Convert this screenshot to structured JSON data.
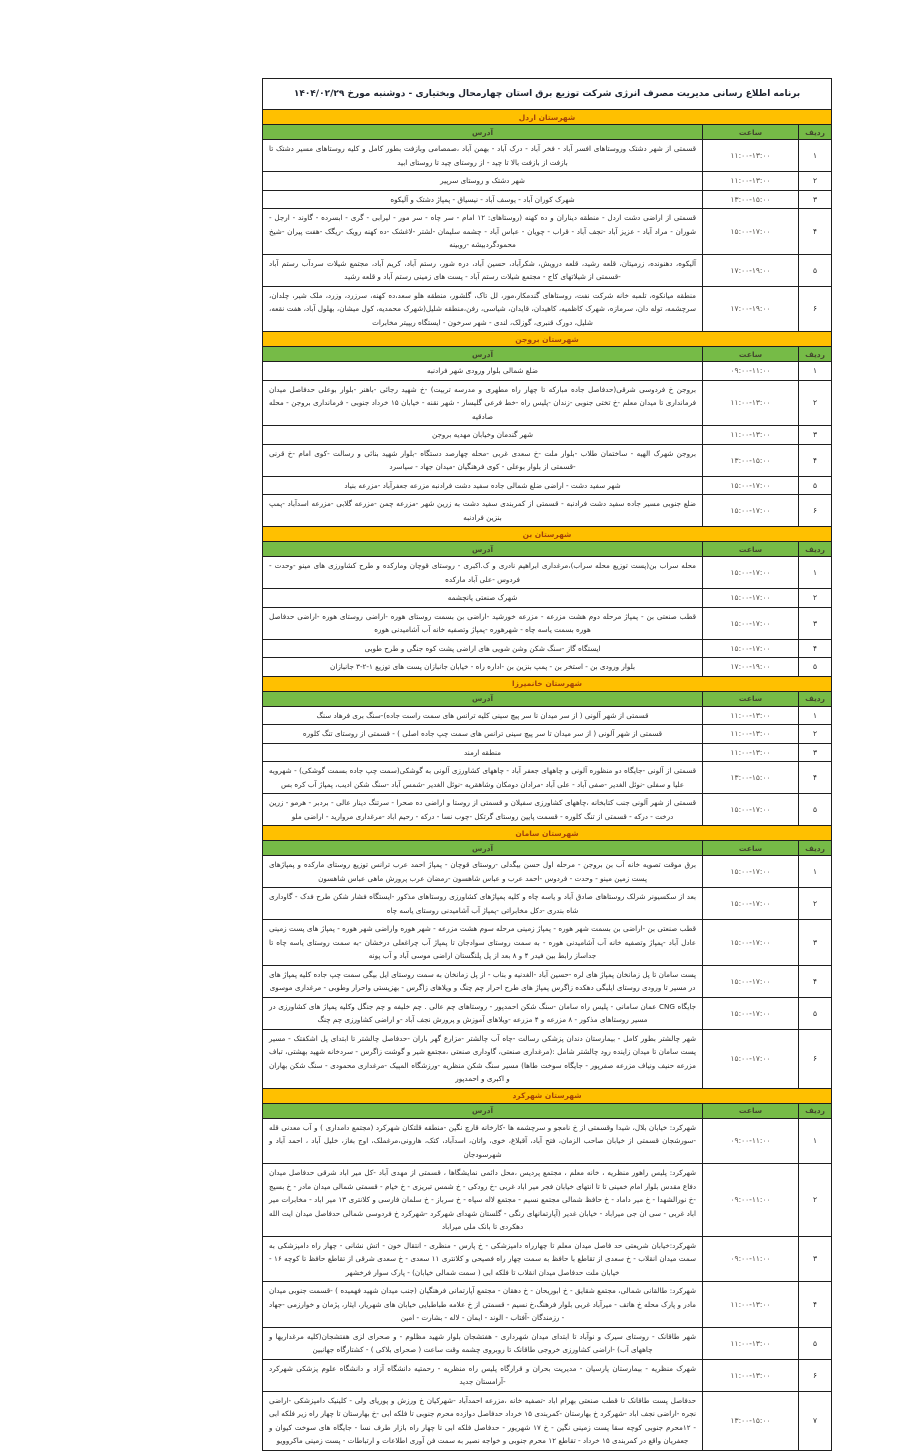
{
  "title": "برنامه اطلاع رسانی مدیریت مصرف انرژی شرکت توزیع برق استان چهارمحال وبختیاری - دوشنبه مورخ ۱۴۰۴/۰۲/۲۹",
  "columns": {
    "address": "آدرس",
    "time": "ساعت",
    "row": "ردیف"
  },
  "colors": {
    "section_header_bg": "#FFC000",
    "section_header_text": "#A3420B",
    "column_header_bg": "#76BB47",
    "column_header_text": "#44482E",
    "border": "#1F1F1F",
    "title_text": "#1F2430",
    "body_text": "#2B2B2B",
    "time_text": "#55504A",
    "page_bg": "#FFFFFF"
  },
  "sections": [
    {
      "name": "شهرستان اردل",
      "rows": [
        {
          "num": "۱",
          "time": "۱۱:۰۰-۱۳:۰۰",
          "address": "قسمتی از شهر دشتک وروستاهای افسر آباد - فخر آباد - درک آباد - بهمن آباد ،صمصامی وبازفت بطور کامل و کلیه روستاهای مسیر دشتک تا بازفت از بازفت بالا تا چید - از روستای چید تا روستای ابید"
        },
        {
          "num": "۲",
          "time": "۱۱:۰۰-۱۳:۰۰",
          "address": "شهر دشتک و روستای سرپیر"
        },
        {
          "num": "۳",
          "time": "۱۳:۰۰-۱۵:۰۰",
          "address": "شهرک کوران آباد - یوسف آباد - نیسیاق - پمپاژ دشتک و آلیکوه"
        },
        {
          "num": "۴",
          "time": "۱۵:۰۰-۱۷:۰۰",
          "address": "قسمتی از اراضی دشت اردل - منطقه دیناران و ده کهنه (روستاهای: ۱۲ امام - سر چاه - سر مور - لیرابی - گری - ابسرده - گاوند - ارجل - شوران - مراد آباد - عزیز آباد -نجف آباد - قراب - چویان - عباس آباد - چشمه سلیمان -لشتر -لاغشک -ده کهنه رویک -ریگک -هفت پیران -شیخ محمودگردبیشه -روبینه"
        },
        {
          "num": "۵",
          "time": "۱۷:۰۰-۱۹:۰۰",
          "address": "آلیکوه، دهنونده، زرمیتان، قلعه رشید، قلعه درویش، شکرآباد، حسین آباد، دره شور، رستم آباد، کریم آباد، مجتمع شیلات سردآب رستم آباد -قسمتی از شیلاتهای کاج - مجتمع شیلات رستم آباد - پست های زمینی رستم آباد و قلعه رشید"
        },
        {
          "num": "۶",
          "time": "۱۷:۰۰-۱۹:۰۰",
          "address": "منطقه میانکوه، تلمبه خانه شرکت نفت، روستاهای گندمکار،مور، لل تاک، گلشور، منطقه هلو سعد،ده کهنه، سرزرد، وزرد، ملک شیر، چلدان، سرچشمه، توله دان، سرمازه، شهرک کاظمیه، کاهیدان، قایدان، شیاسی، رفن،منطقه شلیل(شهرک محمدیه، کول میشان، بهلول آباد، هفت نقعه، شلیل، دورک قنبری، گوزلک، لندی - شهر سرخون - ایستگاه ریپیتر مخابرات"
        }
      ]
    },
    {
      "name": "شهرستان بروجن",
      "rows": [
        {
          "num": "۱",
          "time": "۰۹:۰۰-۱۱:۰۰",
          "address": "ضلع شمالی بلوار ورودی شهر فرادنبه"
        },
        {
          "num": "۲",
          "time": "۱۱:۰۰-۱۳:۰۰",
          "address": "بروجن خ فردوسی شرقی(حدفاصل جاده مبارکه تا چهار راه مطهری و مدرسه تربیت) -خ شهید رجائی -باهنر -بلوار بوعلی حدفاصل میدان فرمانداری تا میدان معلم -خ تختی جنوبی -زندان -پلیس راه -خط فرعی گلیسار - شهر نقنه - خیابان ۱۵ خرداد جنوبی - فرمانداری بروجن - محله صادقیه"
        },
        {
          "num": "۳",
          "time": "۱۱:۰۰-۱۳:۰۰",
          "address": "شهر گندمان وخیابان مهدیه بروجن"
        },
        {
          "num": "۴",
          "time": "۱۳:۰۰-۱۵:۰۰",
          "address": "بروجن شهرک الهیه - ساختمان طلاب -بلوار ملت -خ سعدی غربی -محله چهارصد دستگاه -بلوار شهید بنائی و رسالت -کوی امام -خ قرنی -قسمتی از بلوار بوعلی - کوی فرهنگیان -میدان جهاد - سیاسرد"
        },
        {
          "num": "۵",
          "time": "۱۵:۰۰-۱۷:۰۰",
          "address": "شهر سفید دشت - اراضی ضلع شمالی جاده سفید دشت فرادنبه مزرعه جعفرآباد -مزرعه بنیاد"
        },
        {
          "num": "۶",
          "time": "۱۵:۰۰-۱۷:۰۰",
          "address": "ضلع جنوبی مسیر جاده سفید دشت فرادنبه - قسمتی از کمربندی سفید دشت به زرین شهر -مزرعه چمن -مزرعه گلابی -مزرعه اسدآباد -پمپ بنزین فرادنبه"
        }
      ]
    },
    {
      "name": "شهرستان بن",
      "rows": [
        {
          "num": "۱",
          "time": "۱۵:۰۰-۱۷:۰۰",
          "address": "محله سراب بن(پست توزیع محله سراب)،مرغداری ابراهیم نادری و ک.اکبری - روستای قوچان ومارکده و طرح کشاورزی های مینو -وحدت - فردوس -علی آباد مارکده"
        },
        {
          "num": "۲",
          "time": "۱۵:۰۰-۱۷:۰۰",
          "address": "شهرک صنعتی یانچشمه"
        },
        {
          "num": "۳",
          "time": "۱۵:۰۰-۱۷:۰۰",
          "address": "قطب صنعتی بن - پمپاژ مرحله دوم هشت مزرعه - مزرعه خورشید -اراضی بن بسمت روستای هوره -اراضی روستای هوره -اراضی حدفاصل هوره بسمت یاسه چاه - شهرهوره -پمپاژ وتصفیه خانه آب آشامیدنی هوره"
        },
        {
          "num": "۴",
          "time": "۱۵:۰۰-۱۷:۰۰",
          "address": "ایستگاه گاز -سنگ شکن وشن شویی های اراضی پشت کوه جنگی و طرح طوبی"
        },
        {
          "num": "۵",
          "time": "۱۷:۰۰-۱۹:۰۰",
          "address": "بلوار ورودی بن - استخر بن - پمپ بنزین بن -اداره راه - خیابان جانبازان پست های توزیع ۱-۲-۳ جانبازان"
        }
      ]
    },
    {
      "name": "شهرستان خانمیرزا",
      "rows": [
        {
          "num": "۱",
          "time": "۱۱:۰۰-۱۳:۰۰",
          "address": "قسمتی از شهر آلونی ( از سر میدان تا سر پیچ سینی کلیه ترانس های سمت راست جاده)-سنگ بری فرهاد سنگ"
        },
        {
          "num": "۲",
          "time": "۱۱:۰۰-۱۳:۰۰",
          "address": "قسمتی از شهر آلونی ( از سر میدان تا سر پیچ سینی ترانس های سمت چپ جاده اصلی ) - قسمتی از روستای تنگ کلوره"
        },
        {
          "num": "۳",
          "time": "۱۱:۰۰-۱۳:۰۰",
          "address": "منطقه ارمند"
        },
        {
          "num": "۴",
          "time": "۱۳:۰۰-۱۵:۰۰",
          "address": "قسمتی از آلونی -جایگاه دو منظوره آلونی و چاههای جعفر آباد - چاههای کشاورزی آلونی به گوشکی(سمت چپ جاده بسمت گوشکی) - شهرویه علیا و سفلی -نوئل الغدیر -صفی آباد - علی آباد -مرادان دومکان وشاهقریه -نوئل الغدیر -شمس آباد -سنگ شکن ادیب، پمپاژ آب کره بس"
        },
        {
          "num": "۵",
          "time": "۱۵:۰۰-۱۷:۰۰",
          "address": "قسمتی از شهر آلونی جنب کتابخانه ،چاههای کشاورزی سفیلان و قسمتی از روستا و اراضی ده صحرا - سرتنگ دینار عالی - بردبر - هرمو - زرین درخت - درکه - قسمتی از تنگ کلوره - قسمت پایین روستای گرتکل -چوب نسا - درکه - رحیم اباد -مرغداری مروارید - اراضی ملو"
        }
      ]
    },
    {
      "name": "شهرستان سامان",
      "rows": [
        {
          "num": "۱",
          "time": "۱۵:۰۰-۱۷:۰۰",
          "address": "برق موقت تصویه خانه آب بن بروجن - مرحله اول حسن بیگدلی -روستای قوچان - پمپاژ احمد عرب ترانس توزیع روستای مارکده و پمپاژهای پست زمین مینو - وحدت - فردوس -احمد عرب و عباس شاهسون -رمضان عرب پرورش ماهی عباس شاهسون"
        },
        {
          "num": "۲",
          "time": "۱۵:۰۰-۱۷:۰۰",
          "address": "بعد از سکسیونر شرلک روستاهای صادق آباد و یاسه چاه و کلیه پمپاژهای کشاورزی روستاهای مذکور -ایستگاه فشار شکن طرح فدک - گاوداری شاه بندری -دکل مخابراتی -پمپاژ آب آشامیدنی روستای یاسه چاه"
        },
        {
          "num": "۳",
          "time": "۱۵:۰۰-۱۷:۰۰",
          "address": "قطب صنعتی بن -اراضی بن بسمت شهر هوره - پمپاژ زمینی مرحله سوم هشت مزرعه - شهر هوره واراضی شهر هوره - پمپاژ های پست زمینی عادل آباد -پمپاژ وتصفیه خانه آب آشامیدنی هوره - به سمت روستای سوادجان تا پمپاژ آب چراغعلی درخشان -به سمت روستای یاسه چاه تا جداساز رابط بین فیدر ۴ و ۸ بعد از پل پلنگستان اراضی موسی آباد و آب پونه"
        },
        {
          "num": "۴",
          "time": "۱۵:۰۰-۱۷:۰۰",
          "address": "پست سامان تا پل زمانخان پمپاژ های لره -حسین آباد -الغدنیه و بناب - از پل زمانخان به سمت روستای ایل بیگی سمت چپ جاده کلیه پمپاژ های در مسیر تا ورودی روستای ایلبگی دهکده زاگرس پمپاژ های طرح احرار چم چنگ و ویلاهای زاگرس - بهزیستی واحرار وطوبی - مرغداری موسوی"
        },
        {
          "num": "۵",
          "time": "۱۵:۰۰-۱۷:۰۰",
          "address": "جایگاه CNG عمان سامانی - پلیس راه سامان -سنگ شکن احمدپور - روستاهای چم عالی . چم خلیفه و چم جنگل وکلیه پمپاژ های کشاورزی در مسیر روستاهای مذکور - ۸ مزرعه و ۴ مزرعه -ویلاهای آموزش و پرورش نجف آباد -و اراضی کشاورزی چم چنگ"
        },
        {
          "num": "۶",
          "time": "۱۵:۰۰-۱۷:۰۰",
          "address": "شهر چالشتر بطور کامل - بیمارستان دندان پزشکی رسالت -چاه آب چالشتر -مزارع گهر باران -حدفاصل چالشتر تا ابتدای پل اشکفتک - مسیر پست سامان تا میدان زاینده رود چالشتر شامل :(مرغداری صنعتی، گاوداری صنعتی ،مجتمع شیر و گوشت زاگرس - سردخانه شهید بهشتی، تباف مزرعه حنیف ونیاف مزرعه صفرپور - جایگاه سوخت طاها) مسیر سنگ شکن منظریه -ورزشگاه المپیک -مرغداری محمودی - سنگ شکن بهاران و اکبری و احمدپور"
        }
      ]
    },
    {
      "name": "شهرستان شهرکرد",
      "rows": [
        {
          "num": "۱",
          "time": "۰۹:۰۰-۱۱:۰۰",
          "address": "شهرکرد: خیابان بلال، شیدا وقسمتی از خ نامجو و سرچشمه ها -کارخانه قارچ نگین -منطقه قلتکان شهرکرد (مجتمع دامداری ) و آب معدنی قله -سورشجان قسمتی از خیابان صاحب الزمان، فتح آباد، آقبلاغ، خوی، واتان، اسدآباد، کتک، هارونی،مرغملک، اوج بغاز، خلیل آباد ، احمد آباد و شهرسودجان"
        },
        {
          "num": "۲",
          "time": "۰۹:۰۰-۱۱:۰۰",
          "address": "شهرکرد: پلیس راهور منظریه ، خانه معلم ، مجتمع پردیس ،محل دائمی نمایشگاها ، قسمتی از مهدی آباد -کل میر اباد شرقی حدفاصل میدان دفاع مقدس بلوار امام خمینی تا تا انتهای خیابان فجر میر اباد غربی -خ رودکی - خ شمس تبریزی - خ خیام - قسمتی شمالی میدان مادر - خ بسیج -خ نورالشهدا - خ میر داماد - خ حافظ شمالی مجتمع نسیم - مجتمع لاله سپاه - خ سرباز - خ سلمان فارسی و کلانتری ۱۳ میر اباد - مخابرات میر اباد غربی - سی ان جی میراباد - خیابان غدیر (آپارتمانهای رنگی - گلستان شهدای شهرکرد -شهرکرد خ فردوسی شمالی حدفاصل میدان ایت الله دهکردی تا بانک ملی میراباد"
        },
        {
          "num": "۳",
          "time": "۰۹:۰۰-۱۱:۰۰",
          "address": "شهرکرد:خیابان شریعتی حد فاصل میدان معلم تا چهارراه دامپزشکی - خ پارس - منظری - انتقال خون - اتش نشانی - چهار راه دامپزشکی به سمت میدان انقلاب - خ سعدی از تقاطع با حافظ به سمت چهار راه فصیحی و کلانتری ۱۱ سعدی - خ سعدی شرقی از تقاطع حافظ تا کوچه ۱۶ - خیابان ملت حدفاصل میدان انقلاب تا فلکه ابی ( سمت شمالی خیابان) - پارک سوار فرخشهر"
        },
        {
          "num": "۴",
          "time": "۱۱:۰۰-۱۳:۰۰",
          "address": "شهرکرد: طالقانی شمالی، مجتمع شقایق - خ ابوریحان - خ دهقان - مجتمع آپارتمانی فرهنگیان (جنب میدان شهید فهمیده ) -قسمت جنوبی میدان مادر و پارک محله خ هاتف - میرآباد غربی بلوار فرهنگ،خ نسیم - قسمتی از خ علامه طباطبایی خیابان های شهریار، ایثار، پژمان و خوارزمی -جهاد - رزمندگان -آفتاب - الوند - ایمان - لاله - بشارت - امین"
        },
        {
          "num": "۵",
          "time": "۱۱:۰۰-۱۳:۰۰",
          "address": "شهر طاقانک - روستای سیرک و نوآباد تا ابتدای میدان شهرداری - هفتشجان بلوار شهید مظلوم - و صحرای لزی هفتشجان(کلیه مرغداریها و چاههای آب) -اراضی کشاورزی خروجی طاقانک تا روبروی چشمه وقت ساعت ( صحرای بلاکی ) - کشتارگاه جهانبین"
        },
        {
          "num": "۶",
          "time": "۱۱:۰۰-۱۳:۰۰",
          "address": "شهرک منظریه - بیمارستان پارسیان - مدیریت بحران و قرارگاه پلیس راه منظریه - رحمتیه دانشگاه آزاد و دانشگاه علوم پزشکی شهرکرد -آرامستان جدید"
        },
        {
          "num": "۷",
          "time": "۱۳:۰۰-۱۵:۰۰",
          "address": "حدفاصل پست طاقانک تا قطب صنعتی بهرام اباد -تصفیه خانه ،مزرعه احمدآباد -شهرکیان خ ورزش و پوریای ولی - کلینیک دامپزشکی -اراضی نجره -اراضی نجف اباد -شهرکرد خ بهارستان -کمربندی ۱۵ خرداد حدفاصل دوازده محرم جنوبی تا فلکه ابی -خ بهارستان تا چهار راه زیر فلکه ابی - ۱۲محرم جنوبی کوچه سقا پست زمینی نگین - خ ۱۷ شهریور - حدفاصل فلکه ابی تا چهار راه بازار طرف نسا - جایگاه های سوخت کیوان و جعفریان واقع در کمربندی ۱۵ خرداد - تقاطع ۱۲ محرم جنوبی و خواجه نصیر به سمت فن آوری اطلاعات و ارتباطات - پست زمینی ماکروویو"
        }
      ]
    }
  ]
}
